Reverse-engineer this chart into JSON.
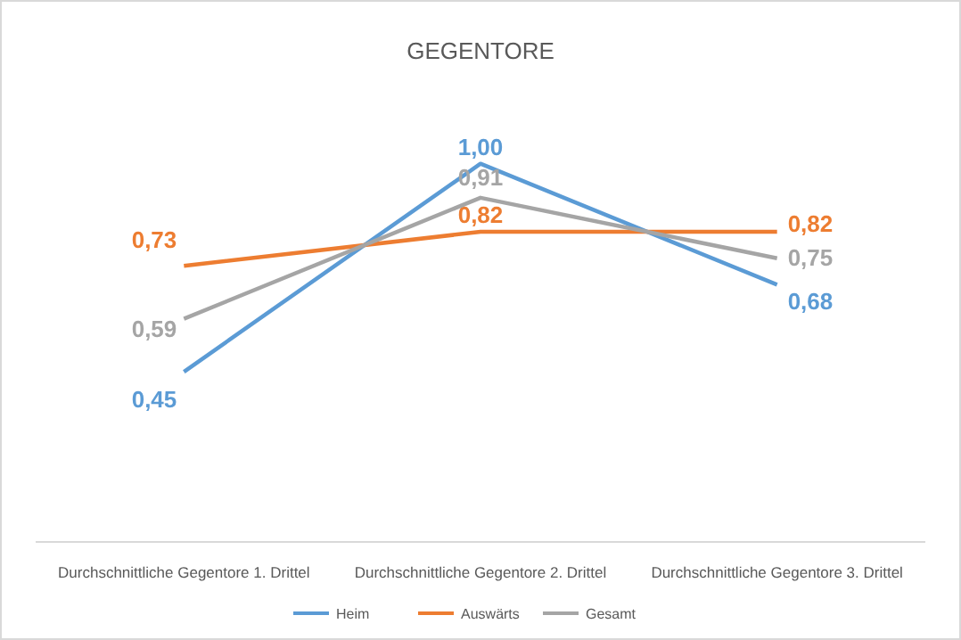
{
  "chart_data": {
    "type": "line",
    "title": "GEGENTORE",
    "categories": [
      "Durchschnittliche Gegentore 1. Drittel",
      "Durchschnittliche Gegentore 2. Drittel",
      "Durchschnittliche Gegentore 3. Drittel"
    ],
    "legend": "bottom",
    "marker": "none",
    "line_style": "solid",
    "series": [
      {
        "name": "Heim",
        "color": "#5b9bd5",
        "values": [
          0.45,
          1.0,
          0.68
        ],
        "value_labels": [
          "0,45",
          "1,00",
          "0,68"
        ]
      },
      {
        "name": "Auswärts",
        "color": "#ed7d31",
        "values": [
          0.73,
          0.82,
          0.82
        ],
        "value_labels": [
          "0,73",
          "0,82",
          "0,82"
        ]
      },
      {
        "name": "Gesamt",
        "color": "#a5a5a5",
        "values": [
          0.59,
          0.91,
          0.75
        ],
        "value_labels": [
          "0,59",
          "0,91",
          "0,75"
        ]
      }
    ]
  }
}
